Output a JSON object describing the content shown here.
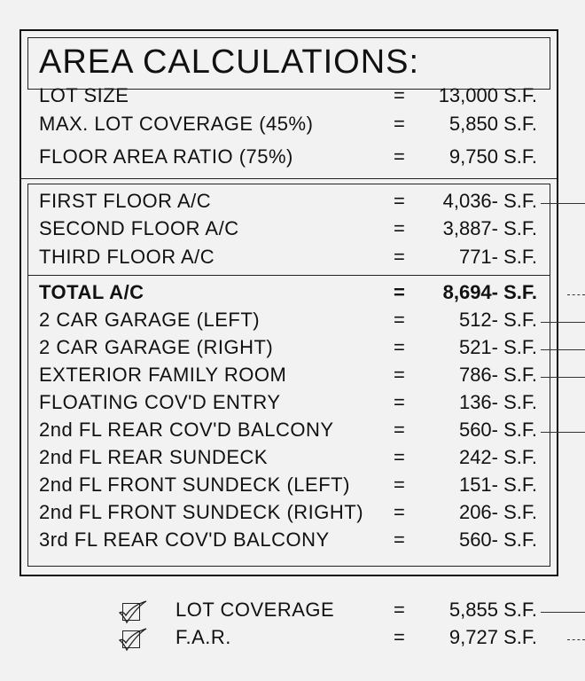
{
  "title": "AREA CALCULATIONS:",
  "site": [
    {
      "label": "LOT SIZE",
      "eq": "=",
      "value": "13,000 S.F."
    },
    {
      "label": "MAX. LOT COVERAGE (45%)",
      "eq": "=",
      "value": "5,850 S.F."
    },
    {
      "label": "FLOOR AREA RATIO (75%)",
      "eq": "=",
      "value": "9,750 S.F."
    }
  ],
  "floors": [
    {
      "label": "FIRST FLOOR A/C",
      "eq": "=",
      "value": "4,036- S.F.",
      "leader": "solid"
    },
    {
      "label": "SECOND FLOOR A/C",
      "eq": "=",
      "value": "3,887- S.F."
    },
    {
      "label": "THIRD FLOOR A/C",
      "eq": "=",
      "value": "771- S.F."
    }
  ],
  "areas": [
    {
      "label": "TOTAL A/C",
      "eq": "=",
      "value": "8,694- S.F.",
      "bold": true,
      "leader": "dashed"
    },
    {
      "label": "2 CAR GARAGE (LEFT)",
      "eq": "=",
      "value": "512- S.F.",
      "leader": "solid"
    },
    {
      "label": "2 CAR GARAGE (RIGHT)",
      "eq": "=",
      "value": "521- S.F.",
      "leader": "solid"
    },
    {
      "label": "EXTERIOR FAMILY ROOM",
      "eq": "=",
      "value": "786- S.F.",
      "leader": "solid"
    },
    {
      "label": "FLOATING COV'D ENTRY",
      "eq": "=",
      "value": "136- S.F."
    },
    {
      "label": "2nd FL REAR COV'D BALCONY",
      "eq": "=",
      "value": "560- S.F.",
      "leader": "solid"
    },
    {
      "label": "2nd FL REAR SUNDECK",
      "eq": "=",
      "value": "242- S.F."
    },
    {
      "label": "2nd FL FRONT SUNDECK (LEFT)",
      "eq": "=",
      "value": "151- S.F."
    },
    {
      "label": "2nd FL FRONT SUNDECK (RIGHT)",
      "eq": "=",
      "value": "206- S.F."
    },
    {
      "label": "3rd FL REAR COV'D BALCONY",
      "eq": "=",
      "value": "560- S.F."
    }
  ],
  "checks": [
    {
      "label": "LOT COVERAGE",
      "eq": "=",
      "value": "5,855 S.F.",
      "leader": "solid",
      "icon": "checkmark-box-icon"
    },
    {
      "label": "F.A.R.",
      "eq": "=",
      "value": "9,727 S.F.",
      "leader": "dashed",
      "icon": "checkmark-box-icon"
    }
  ]
}
